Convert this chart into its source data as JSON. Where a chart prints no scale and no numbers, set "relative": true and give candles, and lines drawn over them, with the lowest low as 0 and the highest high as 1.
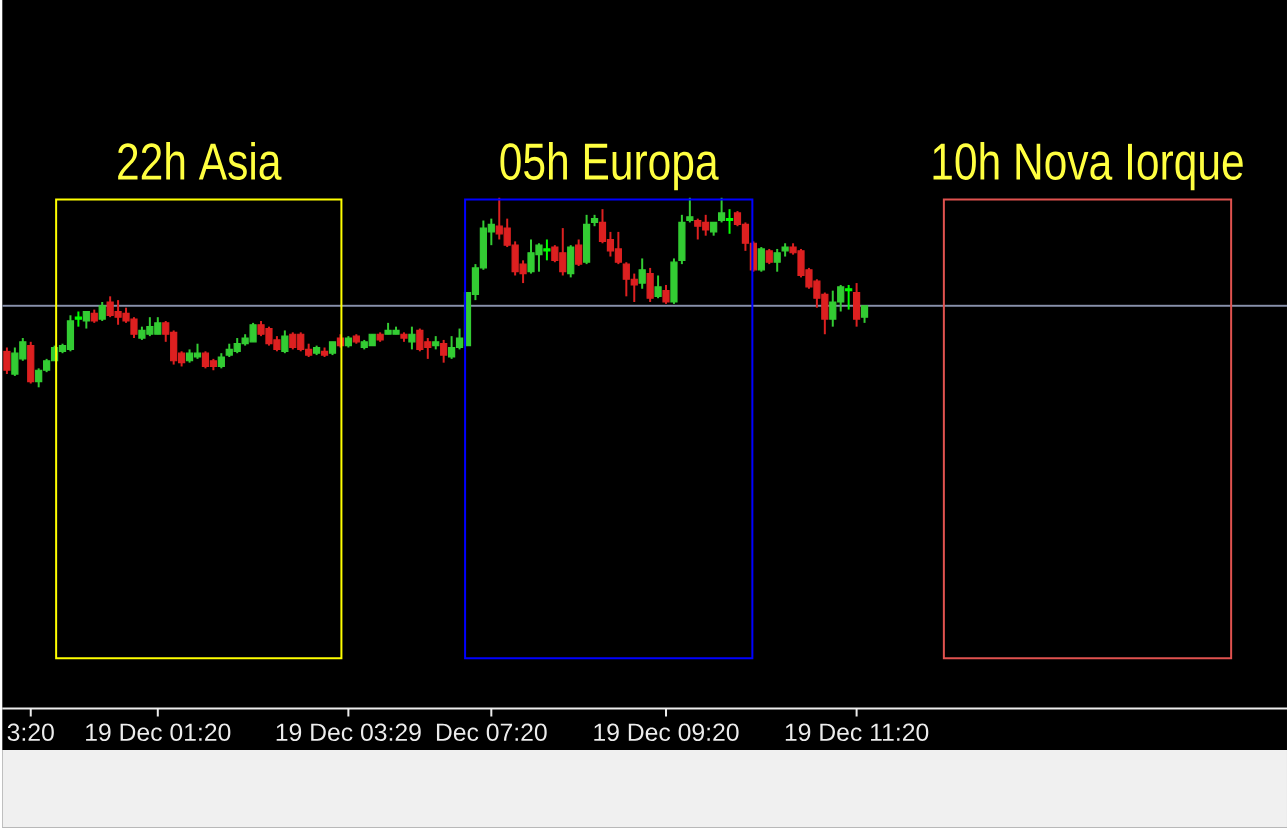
{
  "chart_data": {
    "type": "candlestick",
    "relative": true,
    "categories": [
      null,
      null,
      null,
      "3:20",
      null,
      null,
      null,
      null,
      null,
      null,
      null,
      null,
      null,
      null,
      null,
      null,
      null,
      null,
      null,
      "19 Dec 01:20",
      null,
      null,
      null,
      null,
      null,
      null,
      null,
      null,
      null,
      null,
      null,
      null,
      null,
      null,
      null,
      null,
      null,
      null,
      null,
      null,
      null,
      null,
      null,
      "19 Dec 03:29",
      null,
      null,
      null,
      null,
      null,
      null,
      null,
      null,
      null,
      null,
      null,
      null,
      null,
      null,
      null,
      null,
      null,
      "Dec 07:20",
      null,
      null,
      null,
      null,
      null,
      null,
      null,
      null,
      null,
      null,
      null,
      null,
      null,
      null,
      null,
      null,
      null,
      null,
      null,
      null,
      null,
      "19 Dec 09:20",
      null,
      null,
      null,
      null,
      null,
      null,
      null,
      null,
      null,
      null,
      null,
      null,
      null,
      null,
      null,
      null,
      null,
      null,
      null,
      null,
      null,
      null,
      null,
      "19 Dec 11:20",
      null,
      null,
      null,
      null,
      null,
      null,
      null,
      null,
      null,
      null,
      null,
      null,
      null,
      null,
      null,
      null,
      null,
      null,
      null,
      null,
      null,
      null,
      null,
      null,
      null,
      null,
      null,
      null,
      null,
      null,
      null,
      null,
      null,
      null,
      null,
      null,
      null,
      null,
      null,
      null,
      null,
      null,
      null,
      null,
      null,
      null,
      null,
      null,
      null,
      null,
      null,
      null,
      null,
      null
    ],
    "ohlc": [
      [
        0.19,
        0.21,
        0.07,
        0.09
      ],
      [
        0.07,
        0.21,
        0.06,
        0.18
      ],
      [
        0.15,
        0.26,
        0.14,
        0.24
      ],
      [
        0.22,
        0.24,
        0.02,
        0.03
      ],
      [
        0.03,
        0.1,
        0,
        0.09
      ],
      [
        0.09,
        0.15,
        0.08,
        0.14
      ],
      [
        0.14,
        0.22,
        0.14,
        0.21
      ],
      [
        0.19,
        0.23,
        0.18,
        0.22
      ],
      [
        0.2,
        0.38,
        0.19,
        0.35
      ],
      [
        0.36,
        0.4,
        0.32,
        0.37
      ],
      [
        0.35,
        0.4,
        0.31,
        0.4
      ],
      [
        0.39,
        0.41,
        0.34,
        0.35
      ],
      [
        0.36,
        0.45,
        0.35,
        0.43
      ],
      [
        0.45,
        0.48,
        0.37,
        0.38
      ],
      [
        0.4,
        0.46,
        0.33,
        0.37
      ],
      [
        0.39,
        0.42,
        0.34,
        0.35
      ],
      [
        0.36,
        0.37,
        0.26,
        0.28
      ],
      [
        0.26,
        0.32,
        0.25,
        0.3
      ],
      [
        0.28,
        0.37,
        0.27,
        0.32
      ],
      [
        0.28,
        0.37,
        0.28,
        0.34
      ],
      [
        0.34,
        0.35,
        0.24,
        0.28
      ],
      [
        0.29,
        0.3,
        0.12,
        0.14
      ],
      [
        0.18,
        0.19,
        0.11,
        0.13
      ],
      [
        0.14,
        0.2,
        0.13,
        0.18
      ],
      [
        0.16,
        0.23,
        0.15,
        0.18
      ],
      [
        0.18,
        0.19,
        0.1,
        0.11
      ],
      [
        0.14,
        0.15,
        0.09,
        0.11
      ],
      [
        0.11,
        0.18,
        0.1,
        0.16
      ],
      [
        0.17,
        0.23,
        0.16,
        0.2
      ],
      [
        0.19,
        0.26,
        0.18,
        0.23
      ],
      [
        0.23,
        0.28,
        0.22,
        0.26
      ],
      [
        0.24,
        0.34,
        0.24,
        0.33
      ],
      [
        0.33,
        0.35,
        0.27,
        0.28
      ],
      [
        0.31,
        0.32,
        0.22,
        0.23
      ],
      [
        0.25,
        0.27,
        0.19,
        0.2
      ],
      [
        0.19,
        0.3,
        0.18,
        0.27
      ],
      [
        0.28,
        0.29,
        0.2,
        0.21
      ],
      [
        0.28,
        0.29,
        0.19,
        0.2
      ],
      [
        0.2,
        0.23,
        0.16,
        0.17
      ],
      [
        0.18,
        0.22,
        0.17,
        0.21
      ],
      [
        0.19,
        0.21,
        0.16,
        0.17
      ],
      [
        0.18,
        0.24,
        0.17,
        0.24
      ],
      [
        0.26,
        0.28,
        0.21,
        0.22
      ],
      [
        0.22,
        0.27,
        0.21,
        0.26
      ],
      [
        0.27,
        0.28,
        0.23,
        0.24
      ],
      [
        0.21,
        0.25,
        0.2,
        0.24
      ],
      [
        0.22,
        0.28,
        0.22,
        0.28
      ],
      [
        0.28,
        0.29,
        0.24,
        0.25
      ],
      [
        0.28,
        0.34,
        0.28,
        0.3
      ],
      [
        0.28,
        0.32,
        0.28,
        0.3
      ],
      [
        0.28,
        0.29,
        0.24,
        0.26
      ],
      [
        0.24,
        0.32,
        0.2,
        0.28
      ],
      [
        0.3,
        0.31,
        0.19,
        0.2
      ],
      [
        0.24,
        0.26,
        0.15,
        0.21
      ],
      [
        0.22,
        0.27,
        0.2,
        0.24
      ],
      [
        0.23,
        0.25,
        0.13,
        0.17
      ],
      [
        0.16,
        0.27,
        0.15,
        0.21
      ],
      [
        0.21,
        0.31,
        0.2,
        0.26
      ],
      [
        0.22,
        0.5,
        0.22,
        0.5
      ],
      [
        0.49,
        0.65,
        0.46,
        0.63
      ],
      [
        0.63,
        0.88,
        0.62,
        0.84
      ],
      [
        0.82,
        0.89,
        0.75,
        0.86
      ],
      [
        0.85,
        1,
        0.78,
        0.81
      ],
      [
        0.84,
        0.89,
        0.74,
        0.75
      ],
      [
        0.75,
        0.77,
        0.59,
        0.61
      ],
      [
        0.65,
        0.67,
        0.55,
        0.6
      ],
      [
        0.61,
        0.78,
        0.6,
        0.71
      ],
      [
        0.7,
        0.76,
        0.61,
        0.75
      ],
      [
        0.72,
        0.78,
        0.67,
        0.73
      ],
      [
        0.74,
        0.75,
        0.66,
        0.67
      ],
      [
        0.71,
        0.84,
        0.59,
        0.61
      ],
      [
        0.6,
        0.75,
        0.58,
        0.74
      ],
      [
        0.75,
        0.78,
        0.64,
        0.65
      ],
      [
        0.66,
        0.91,
        0.65,
        0.86
      ],
      [
        0.87,
        0.91,
        0.85,
        0.89
      ],
      [
        0.87,
        0.94,
        0.76,
        0.77
      ],
      [
        0.78,
        0.82,
        0.69,
        0.72
      ],
      [
        0.73,
        0.82,
        0.65,
        0.66
      ],
      [
        0.65,
        0.66,
        0.48,
        0.57
      ],
      [
        0.57,
        0.6,
        0.45,
        0.54
      ],
      [
        0.55,
        0.68,
        0.52,
        0.62
      ],
      [
        0.6,
        0.63,
        0.45,
        0.47
      ],
      [
        0.48,
        0.59,
        0.47,
        0.53
      ],
      [
        0.51,
        0.54,
        0.44,
        0.45
      ],
      [
        0.45,
        0.68,
        0.44,
        0.66
      ],
      [
        0.67,
        0.91,
        0.65,
        0.87
      ],
      [
        0.88,
        1,
        0.87,
        0.9
      ],
      [
        0.88,
        0.89,
        0.78,
        0.85
      ],
      [
        0.87,
        0.91,
        0.8,
        0.83
      ],
      [
        0.82,
        0.87,
        0.8,
        0.87
      ],
      [
        0.88,
        1,
        0.87,
        0.92
      ],
      [
        0.88,
        0.94,
        0.81,
        0.89
      ],
      [
        0.92,
        0.93,
        0.85,
        0.86
      ],
      [
        0.86,
        0.87,
        0.72,
        0.76
      ],
      [
        0.76,
        0.77,
        0.61,
        0.62
      ],
      [
        0.62,
        0.74,
        0.61,
        0.73
      ],
      [
        0.72,
        0.73,
        0.65,
        0.66
      ],
      [
        0.66,
        0.73,
        0.61,
        0.71
      ],
      [
        0.72,
        0.76,
        0.69,
        0.74
      ],
      [
        0.74,
        0.76,
        0.7,
        0.71
      ],
      [
        0.72,
        0.73,
        0.58,
        0.59
      ],
      [
        0.62,
        0.63,
        0.52,
        0.53
      ],
      [
        0.56,
        0.57,
        0.42,
        0.47
      ],
      [
        0.49,
        0.5,
        0.28,
        0.36
      ],
      [
        0.36,
        0.51,
        0.32,
        0.45
      ],
      [
        0.45,
        0.54,
        0.4,
        0.53
      ],
      [
        0.51,
        0.54,
        0.41,
        0.52
      ],
      [
        0.5,
        0.55,
        0.32,
        0.36
      ],
      [
        0.37,
        0.43,
        0.34,
        0.43
      ],
      null,
      null,
      null,
      null,
      null,
      null,
      null,
      null,
      null,
      null,
      null,
      null,
      null,
      null,
      null,
      null,
      null,
      null,
      null,
      null,
      null,
      null,
      null,
      null,
      null,
      null,
      null,
      null,
      null,
      null,
      null,
      null,
      null,
      null,
      null,
      null,
      null,
      null,
      null,
      null,
      null,
      null,
      null,
      null,
      null,
      null,
      null,
      null,
      null,
      null,
      null,
      null,
      null
    ],
    "colors": [
      "#dd2020",
      "#33cc33",
      "#33cc33",
      "#dd2020",
      "#33cc33",
      "#33cc33",
      "#33cc33",
      "#33cc33",
      "#33cc33",
      "#00ff00",
      "#33cc33",
      "#dd2020",
      "#33cc33",
      "#dd2020",
      "#dd2020",
      "#dd2020",
      "#dd2020",
      "#33cc33",
      "#33cc33",
      "#33cc33",
      "#dd2020",
      "#dd2020",
      "#dd2020",
      "#33cc33",
      "#33cc33",
      "#dd2020",
      "#dd2020",
      "#33cc33",
      "#33cc33",
      "#33cc33",
      "#33cc33",
      "#33cc33",
      "#dd2020",
      "#dd2020",
      "#dd2020",
      "#33cc33",
      "#dd2020",
      "#dd2020",
      "#dd2020",
      "#33cc33",
      "#dd2020",
      "#33cc33",
      "#dd2020",
      "#33cc33",
      "#dd2020",
      "#33cc33",
      "#33cc33",
      "#dd2020",
      "#33cc33",
      "#33cc33",
      "#dd2020",
      "#33cc33",
      "#dd2020",
      "#dd2020",
      "#33cc33",
      "#dd2020",
      "#33cc33",
      "#33cc33",
      "#33cc33",
      "#33cc33",
      "#33cc33",
      "#33cc33",
      "#dd2020",
      "#dd2020",
      "#dd2020",
      "#dd2020",
      "#33cc33",
      "#33cc33",
      "#00ff00",
      "#dd2020",
      "#dd2020",
      "#33cc33",
      "#dd2020",
      "#33cc33",
      "#33cc33",
      "#dd2020",
      "#dd2020",
      "#dd2020",
      "#dd2020",
      "#dd2020",
      "#33cc33",
      "#dd2020",
      "#33cc33",
      "#dd2020",
      "#33cc33",
      "#33cc33",
      "#33cc33",
      "#dd2020",
      "#dd2020",
      "#33cc33",
      "#33cc33",
      "#00ff00",
      "#dd2020",
      "#dd2020",
      "#dd2020",
      "#33cc33",
      "#dd2020",
      "#33cc33",
      "#33cc33",
      "#dd2020",
      "#dd2020",
      "#dd2020",
      "#dd2020",
      "#dd2020",
      "#33cc33",
      "#33cc33",
      "#00ff00",
      "#dd2020",
      "#33cc33",
      null,
      null,
      null,
      null,
      null,
      null,
      null,
      null,
      null,
      null,
      null,
      null,
      null,
      null,
      null,
      null,
      null,
      null,
      null,
      null,
      null,
      null,
      null,
      null,
      null,
      null,
      null,
      null,
      null,
      null,
      null,
      null,
      null,
      null,
      null,
      null,
      null,
      null,
      null,
      null,
      null,
      null,
      null,
      null,
      null,
      null,
      null,
      null,
      null,
      null,
      null,
      null,
      null
    ],
    "annotations": [
      "22h Asia",
      "05h Europa",
      "10h Nova Iorque"
    ],
    "ref_lines": [
      {
        "axis": "y",
        "value": 0.43,
        "color": "#8891ab"
      }
    ]
  }
}
